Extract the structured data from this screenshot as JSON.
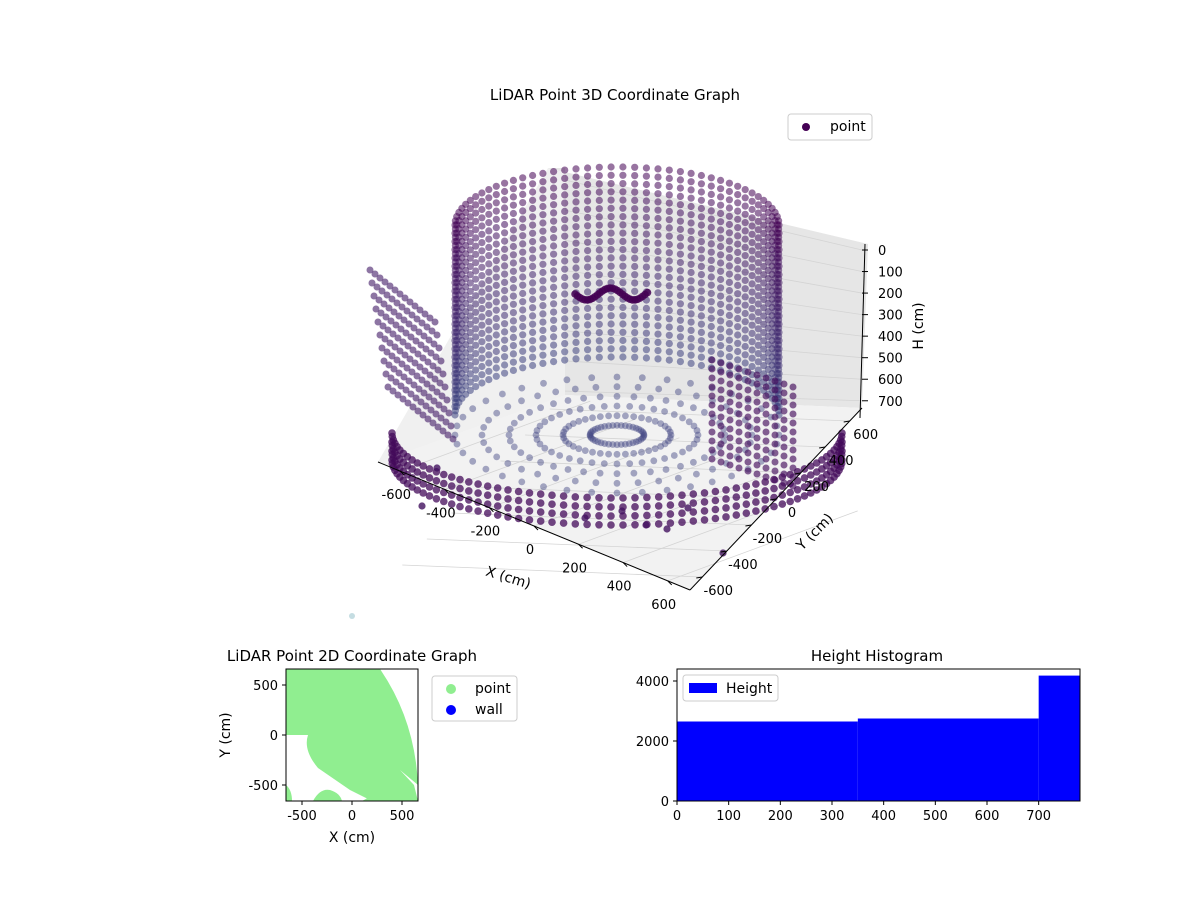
{
  "chart_data": [
    {
      "type": "scatter",
      "title": "LiDAR Point 3D Coordinate Graph",
      "legend": {
        "entries": [
          "point"
        ],
        "placement": "top-right"
      },
      "series": [
        {
          "name": "point",
          "color": "#440154"
        }
      ],
      "xlabel": "X (cm)",
      "ylabel": "Y (cm)",
      "zlabel": "H (cm)",
      "xlim": [
        -700,
        700
      ],
      "ylim": [
        -700,
        700
      ],
      "zlim": [
        0,
        780
      ],
      "z_inverted": true,
      "xticks": [
        "-600",
        "-400",
        "-200",
        "0",
        "200",
        "400",
        "600"
      ],
      "yticks": [
        "600",
        "400",
        "200",
        "0",
        "-200",
        "-400",
        "-600"
      ],
      "zticks": [
        "0",
        "100",
        "200",
        "300",
        "400",
        "500",
        "600",
        "700"
      ],
      "grid": true,
      "colormap": "viridis (dark purple to blue)"
    },
    {
      "type": "scatter",
      "title": "LiDAR Point 2D Coordinate Graph",
      "legend": {
        "entries": [
          "point",
          "wall"
        ],
        "placement": "outside-right"
      },
      "series": [
        {
          "name": "point",
          "color": "#90ee90"
        },
        {
          "name": "wall",
          "color": "#0000ff"
        }
      ],
      "xlabel": "X (cm)",
      "ylabel": "Y (cm)",
      "xlim": [
        -660,
        660
      ],
      "ylim": [
        -660,
        660
      ],
      "xticks": [
        "-500",
        "0",
        "500"
      ],
      "yticks": [
        "500",
        "0",
        "-500"
      ]
    },
    {
      "type": "bar",
      "title": "Height Histogram",
      "legend": {
        "entries": [
          "Height"
        ],
        "placement": "top-left"
      },
      "series": [
        {
          "name": "Height",
          "color": "#0000ff"
        }
      ],
      "bins": [
        {
          "from": 0,
          "to": 350,
          "value": 2650
        },
        {
          "from": 350,
          "to": 700,
          "value": 2750
        },
        {
          "from": 700,
          "to": 780,
          "value": 4180
        }
      ],
      "xlim": [
        0,
        780
      ],
      "ylim": [
        0,
        4400
      ],
      "xticks": [
        "0",
        "100",
        "200",
        "300",
        "400",
        "500",
        "600",
        "700"
      ],
      "yticks": [
        "0",
        "2000",
        "4000"
      ]
    }
  ]
}
